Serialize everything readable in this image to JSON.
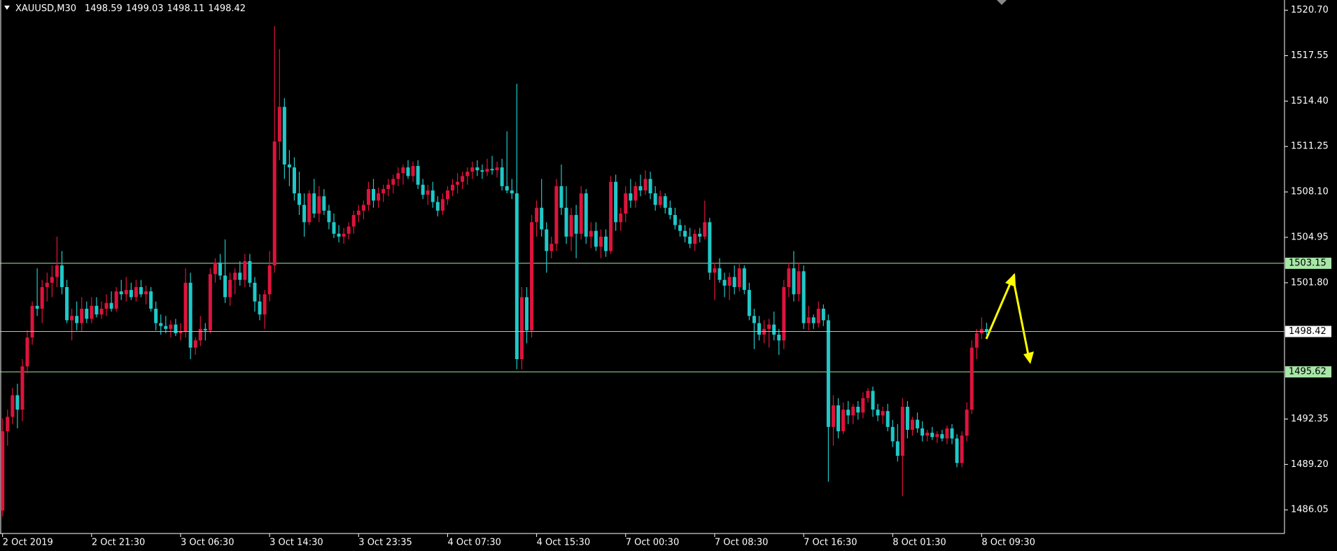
{
  "chart_data": {
    "type": "candlestick",
    "symbol": "XAUUSD,M30",
    "colors": {
      "up": "#dc143c",
      "down": "#20c8c8",
      "axis": "#ffffff",
      "current": "#c0c0c0",
      "level": "#a8e6a8"
    },
    "ylim": [
      1484.41,
      1521.41
    ],
    "yticks": [
      {
        "value": 1520.7,
        "label": "1520.70"
      },
      1517.55,
      {
        "value": 1514.4,
        "label": "1514.40"
      },
      1511.25,
      {
        "value": 1508.1,
        "label": "1508.10"
      },
      1504.95,
      {
        "value": 1501.8,
        "label": "1501.80"
      },
      1492.35,
      {
        "value": 1489.2,
        "label": "1489.20"
      },
      1486.05
    ],
    "levels": [
      1503.15,
      1495.62
    ],
    "categories": [
      "2 Oct 2019",
      null,
      null,
      null,
      null,
      null,
      null,
      null,
      null,
      null,
      null,
      null,
      null,
      null,
      null,
      null,
      null,
      null,
      "2 Oct 21:30",
      null,
      null,
      null,
      null,
      null,
      null,
      null,
      null,
      null,
      null,
      null,
      null,
      null,
      null,
      null,
      null,
      null,
      "3 Oct 06:30",
      null,
      null,
      null,
      null,
      null,
      null,
      null,
      null,
      null,
      null,
      null,
      null,
      null,
      null,
      null,
      null,
      null,
      "3 Oct 14:30",
      null,
      null,
      null,
      null,
      null,
      null,
      null,
      null,
      null,
      null,
      null,
      null,
      null,
      null,
      null,
      null,
      null,
      "3 Oct 23:35",
      null,
      null,
      null,
      null,
      null,
      null,
      null,
      null,
      null,
      null,
      null,
      null,
      null,
      null,
      null,
      null,
      null,
      "4 Oct 07:30",
      null,
      null,
      null,
      null,
      null,
      null,
      null,
      null,
      null,
      null,
      null,
      null,
      null,
      null,
      null,
      null,
      null,
      "4 Oct 15:30",
      null,
      null,
      null,
      null,
      null,
      null,
      null,
      null,
      null,
      null,
      null,
      null,
      null,
      null,
      null,
      null,
      null,
      "7 Oct 00:30",
      null,
      null,
      null,
      null,
      null,
      null,
      null,
      null,
      null,
      null,
      null,
      null,
      null,
      null,
      null,
      null,
      null,
      "7 Oct 08:30",
      null,
      null,
      null,
      null,
      null,
      null,
      null,
      null,
      null,
      null,
      null,
      null,
      null,
      null,
      null,
      null,
      null,
      "7 Oct 16:30",
      null,
      null,
      null,
      null,
      null,
      null,
      null,
      null,
      null,
      null,
      null,
      null,
      null,
      null,
      null,
      null,
      null,
      "8 Oct 01:30",
      null,
      null,
      null,
      null,
      null,
      null,
      null,
      null,
      null,
      null,
      null,
      null,
      null,
      null,
      null,
      null,
      null,
      "8 Oct 09:30",
      null
    ],
    "candles": [
      [
        1486.0,
        1492.4,
        1485.6,
        1491.5
      ],
      [
        1491.5,
        1493.0,
        1490.5,
        1492.5
      ],
      [
        1492.5,
        1494.5,
        1492.0,
        1494.0
      ],
      [
        1494.0,
        1494.8,
        1491.7,
        1493.0
      ],
      [
        1493.0,
        1496.5,
        1492.2,
        1496.0
      ],
      [
        1496.0,
        1498.5,
        1495.5,
        1498.0
      ],
      [
        1498.0,
        1500.5,
        1497.5,
        1500.2
      ],
      [
        1500.2,
        1502.8,
        1499.5,
        1500.0
      ],
      [
        1500.0,
        1502.0,
        1499.0,
        1501.5
      ],
      [
        1501.5,
        1502.5,
        1500.5,
        1501.8
      ],
      [
        1501.8,
        1503.0,
        1500.8,
        1502.2
      ],
      [
        1502.2,
        1505.0,
        1501.5,
        1503.0
      ],
      [
        1503.0,
        1504.0,
        1501.0,
        1501.5
      ],
      [
        1501.5,
        1502.0,
        1499.0,
        1499.2
      ],
      [
        1499.2,
        1500.0,
        1497.8,
        1499.5
      ],
      [
        1499.5,
        1500.5,
        1498.5,
        1499.0
      ],
      [
        1499.0,
        1500.8,
        1498.4,
        1500.0
      ],
      [
        1500.0,
        1500.5,
        1499.0,
        1499.3
      ],
      [
        1499.3,
        1500.8,
        1499.0,
        1500.2
      ],
      [
        1500.2,
        1500.8,
        1499.4,
        1499.6
      ],
      [
        1499.6,
        1500.5,
        1499.3,
        1500.0
      ],
      [
        1500.0,
        1501.0,
        1499.5,
        1500.4
      ],
      [
        1500.4,
        1501.2,
        1499.8,
        1500.0
      ],
      [
        1500.0,
        1501.5,
        1499.8,
        1501.2
      ],
      [
        1501.2,
        1502.0,
        1500.6,
        1501.0
      ],
      [
        1501.0,
        1502.2,
        1500.5,
        1501.3
      ],
      [
        1501.3,
        1501.8,
        1500.6,
        1500.8
      ],
      [
        1500.8,
        1502.0,
        1500.5,
        1501.5
      ],
      [
        1501.5,
        1502.0,
        1500.8,
        1501.0
      ],
      [
        1501.0,
        1501.6,
        1500.3,
        1501.2
      ],
      [
        1501.2,
        1501.5,
        1499.8,
        1500.0
      ],
      [
        1500.0,
        1500.5,
        1498.5,
        1499.0
      ],
      [
        1499.0,
        1499.6,
        1498.2,
        1498.8
      ],
      [
        1498.8,
        1499.5,
        1498.3,
        1498.6
      ],
      [
        1498.6,
        1499.2,
        1498.0,
        1498.9
      ],
      [
        1498.9,
        1499.3,
        1498.1,
        1498.3
      ],
      [
        1498.3,
        1499.0,
        1497.8,
        1498.4
      ],
      [
        1498.4,
        1502.8,
        1498.0,
        1501.8
      ],
      [
        1501.8,
        1502.5,
        1496.5,
        1497.3
      ],
      [
        1497.3,
        1498.0,
        1496.8,
        1497.8
      ],
      [
        1497.8,
        1499.5,
        1497.4,
        1498.6
      ],
      [
        1498.6,
        1499.0,
        1497.8,
        1498.5
      ],
      [
        1498.5,
        1502.8,
        1498.3,
        1502.4
      ],
      [
        1502.4,
        1503.5,
        1501.8,
        1503.2
      ],
      [
        1503.2,
        1503.8,
        1502.0,
        1502.3
      ],
      [
        1502.3,
        1504.8,
        1500.4,
        1500.8
      ],
      [
        1500.8,
        1502.5,
        1500.2,
        1502.0
      ],
      [
        1502.0,
        1502.8,
        1501.0,
        1502.5
      ],
      [
        1502.5,
        1503.3,
        1501.6,
        1502.0
      ],
      [
        1502.0,
        1503.8,
        1501.5,
        1503.3
      ],
      [
        1503.3,
        1503.8,
        1501.5,
        1501.8
      ],
      [
        1501.8,
        1502.2,
        1499.8,
        1500.5
      ],
      [
        1500.5,
        1501.0,
        1499.2,
        1499.6
      ],
      [
        1499.6,
        1501.3,
        1498.6,
        1501.0
      ],
      [
        1501.0,
        1504.0,
        1500.5,
        1503.0
      ],
      [
        1503.0,
        1519.6,
        1502.5,
        1511.6
      ],
      [
        1511.6,
        1518.0,
        1510.3,
        1514.0
      ],
      [
        1514.0,
        1514.6,
        1509.0,
        1510.0
      ],
      [
        1510.0,
        1511.0,
        1508.5,
        1509.8
      ],
      [
        1509.8,
        1510.5,
        1507.5,
        1508.0
      ],
      [
        1508.0,
        1509.5,
        1506.5,
        1507.2
      ],
      [
        1507.2,
        1508.0,
        1505.0,
        1506.0
      ],
      [
        1506.0,
        1508.2,
        1505.8,
        1508.0
      ],
      [
        1508.0,
        1509.0,
        1506.3,
        1506.6
      ],
      [
        1506.6,
        1508.5,
        1506.0,
        1507.8
      ],
      [
        1507.8,
        1508.3,
        1506.5,
        1506.8
      ],
      [
        1506.8,
        1507.2,
        1505.5,
        1506.0
      ],
      [
        1506.0,
        1506.6,
        1504.9,
        1505.2
      ],
      [
        1505.2,
        1505.8,
        1504.6,
        1505.0
      ],
      [
        1505.0,
        1505.6,
        1504.5,
        1505.2
      ],
      [
        1505.2,
        1506.0,
        1504.8,
        1505.7
      ],
      [
        1505.7,
        1506.8,
        1505.2,
        1506.5
      ],
      [
        1506.5,
        1507.2,
        1506.0,
        1506.8
      ],
      [
        1506.8,
        1507.5,
        1506.2,
        1507.2
      ],
      [
        1507.2,
        1508.8,
        1506.8,
        1508.3
      ],
      [
        1508.3,
        1509.0,
        1507.0,
        1507.5
      ],
      [
        1507.5,
        1508.4,
        1507.0,
        1508.0
      ],
      [
        1508.0,
        1508.6,
        1507.4,
        1508.3
      ],
      [
        1508.3,
        1509.0,
        1507.8,
        1508.6
      ],
      [
        1508.6,
        1509.3,
        1508.0,
        1509.0
      ],
      [
        1509.0,
        1509.8,
        1508.5,
        1509.4
      ],
      [
        1509.4,
        1510.0,
        1508.6,
        1509.8
      ],
      [
        1509.8,
        1510.3,
        1509.0,
        1509.2
      ],
      [
        1509.2,
        1510.2,
        1508.8,
        1509.9
      ],
      [
        1509.9,
        1510.3,
        1508.3,
        1508.6
      ],
      [
        1508.6,
        1509.0,
        1507.6,
        1507.9
      ],
      [
        1507.9,
        1508.6,
        1507.2,
        1508.2
      ],
      [
        1508.2,
        1508.8,
        1507.0,
        1507.4
      ],
      [
        1507.4,
        1507.8,
        1506.4,
        1506.8
      ],
      [
        1506.8,
        1508.0,
        1506.5,
        1507.6
      ],
      [
        1507.6,
        1508.5,
        1507.2,
        1508.2
      ],
      [
        1508.2,
        1509.0,
        1507.8,
        1508.6
      ],
      [
        1508.6,
        1509.4,
        1508.0,
        1508.8
      ],
      [
        1508.8,
        1509.5,
        1508.3,
        1509.2
      ],
      [
        1509.2,
        1509.8,
        1508.6,
        1509.5
      ],
      [
        1509.5,
        1510.2,
        1509.0,
        1509.8
      ],
      [
        1509.8,
        1510.3,
        1509.2,
        1509.6
      ],
      [
        1509.6,
        1510.0,
        1509.0,
        1509.5
      ],
      [
        1509.5,
        1510.4,
        1509.2,
        1509.7
      ],
      [
        1509.7,
        1510.6,
        1509.3,
        1509.6
      ],
      [
        1509.6,
        1510.2,
        1509.1,
        1509.8
      ],
      [
        1509.8,
        1510.4,
        1508.2,
        1508.5
      ],
      [
        1508.5,
        1512.3,
        1508.0,
        1508.2
      ],
      [
        1508.2,
        1509.0,
        1507.6,
        1508.0
      ],
      [
        1508.0,
        1515.6,
        1495.8,
        1496.5
      ],
      [
        1496.5,
        1501.5,
        1495.8,
        1500.8
      ],
      [
        1500.8,
        1501.5,
        1497.6,
        1498.5
      ],
      [
        1498.5,
        1506.5,
        1498.0,
        1506.0
      ],
      [
        1506.0,
        1507.5,
        1505.0,
        1507.0
      ],
      [
        1507.0,
        1509.0,
        1505.0,
        1505.5
      ],
      [
        1505.5,
        1506.0,
        1502.5,
        1504.0
      ],
      [
        1504.0,
        1505.0,
        1503.5,
        1504.5
      ],
      [
        1504.5,
        1509.0,
        1504.0,
        1508.5
      ],
      [
        1508.5,
        1510.0,
        1506.5,
        1507.0
      ],
      [
        1507.0,
        1508.5,
        1504.5,
        1505.0
      ],
      [
        1505.0,
        1507.0,
        1504.0,
        1506.5
      ],
      [
        1506.5,
        1507.2,
        1503.5,
        1505.2
      ],
      [
        1505.2,
        1508.5,
        1504.8,
        1508.0
      ],
      [
        1508.0,
        1508.3,
        1504.5,
        1505.0
      ],
      [
        1505.0,
        1506.0,
        1504.2,
        1505.4
      ],
      [
        1505.4,
        1506.0,
        1504.0,
        1504.3
      ],
      [
        1504.3,
        1505.5,
        1503.5,
        1505.0
      ],
      [
        1505.0,
        1505.5,
        1503.6,
        1504.0
      ],
      [
        1504.0,
        1509.2,
        1503.8,
        1508.8
      ],
      [
        1508.8,
        1509.3,
        1505.4,
        1506.0
      ],
      [
        1506.0,
        1507.0,
        1505.4,
        1506.6
      ],
      [
        1506.6,
        1508.5,
        1506.0,
        1508.0
      ],
      [
        1508.0,
        1509.0,
        1507.0,
        1507.5
      ],
      [
        1507.5,
        1508.8,
        1507.0,
        1508.5
      ],
      [
        1508.5,
        1509.3,
        1507.8,
        1508.2
      ],
      [
        1508.2,
        1509.6,
        1507.9,
        1509.0
      ],
      [
        1509.0,
        1509.5,
        1507.6,
        1508.0
      ],
      [
        1508.0,
        1508.5,
        1506.8,
        1507.2
      ],
      [
        1507.2,
        1508.2,
        1507.0,
        1507.8
      ],
      [
        1507.8,
        1508.0,
        1506.6,
        1507.0
      ],
      [
        1507.0,
        1507.5,
        1506.2,
        1506.5
      ],
      [
        1506.5,
        1507.0,
        1505.5,
        1505.8
      ],
      [
        1505.8,
        1506.2,
        1505.0,
        1505.4
      ],
      [
        1505.4,
        1505.8,
        1504.6,
        1505.0
      ],
      [
        1505.0,
        1505.6,
        1504.2,
        1504.5
      ],
      [
        1504.5,
        1505.5,
        1504.0,
        1505.2
      ],
      [
        1505.2,
        1505.6,
        1504.6,
        1505.0
      ],
      [
        1505.0,
        1507.5,
        1504.8,
        1506.0
      ],
      [
        1506.0,
        1506.3,
        1502.0,
        1502.5
      ],
      [
        1502.5,
        1503.2,
        1500.6,
        1502.8
      ],
      [
        1502.8,
        1503.5,
        1501.8,
        1502.0
      ],
      [
        1502.0,
        1502.5,
        1500.8,
        1501.6
      ],
      [
        1501.6,
        1502.5,
        1500.6,
        1502.2
      ],
      [
        1502.2,
        1503.0,
        1501.0,
        1501.5
      ],
      [
        1501.5,
        1503.2,
        1501.2,
        1502.8
      ],
      [
        1502.8,
        1503.0,
        1501.0,
        1501.3
      ],
      [
        1501.3,
        1501.8,
        1499.2,
        1499.5
      ],
      [
        1499.5,
        1500.0,
        1497.2,
        1499.0
      ],
      [
        1499.0,
        1499.5,
        1497.8,
        1498.2
      ],
      [
        1498.2,
        1499.2,
        1497.6,
        1498.6
      ],
      [
        1498.6,
        1499.3,
        1497.3,
        1498.9
      ],
      [
        1498.9,
        1499.8,
        1497.8,
        1498.2
      ],
      [
        1498.2,
        1498.6,
        1496.8,
        1497.8
      ],
      [
        1497.8,
        1502.0,
        1497.2,
        1501.5
      ],
      [
        1501.5,
        1503.2,
        1500.8,
        1502.8
      ],
      [
        1502.8,
        1504.0,
        1500.5,
        1501.0
      ],
      [
        1501.0,
        1503.2,
        1500.5,
        1502.6
      ],
      [
        1502.6,
        1503.0,
        1498.6,
        1499.0
      ],
      [
        1499.0,
        1500.2,
        1498.5,
        1499.4
      ],
      [
        1499.4,
        1499.6,
        1498.6,
        1499.0
      ],
      [
        1499.0,
        1500.5,
        1498.7,
        1500.0
      ],
      [
        1500.0,
        1500.3,
        1498.8,
        1499.2
      ],
      [
        1499.2,
        1499.6,
        1488.0,
        1491.8
      ],
      [
        1491.8,
        1494.0,
        1490.5,
        1493.3
      ],
      [
        1493.3,
        1493.8,
        1491.0,
        1491.5
      ],
      [
        1491.5,
        1493.5,
        1491.3,
        1493.0
      ],
      [
        1493.0,
        1493.6,
        1492.0,
        1492.6
      ],
      [
        1492.6,
        1493.4,
        1492.0,
        1493.2
      ],
      [
        1493.2,
        1493.6,
        1492.3,
        1492.8
      ],
      [
        1492.8,
        1494.2,
        1492.4,
        1493.8
      ],
      [
        1493.8,
        1494.5,
        1493.5,
        1494.3
      ],
      [
        1494.3,
        1494.6,
        1492.5,
        1493.0
      ],
      [
        1493.0,
        1493.4,
        1492.2,
        1492.6
      ],
      [
        1492.6,
        1493.2,
        1492.0,
        1492.9
      ],
      [
        1492.9,
        1493.4,
        1491.5,
        1491.8
      ],
      [
        1491.8,
        1492.3,
        1490.4,
        1490.8
      ],
      [
        1490.8,
        1492.0,
        1489.4,
        1489.8
      ],
      [
        1489.8,
        1493.8,
        1487.0,
        1493.2
      ],
      [
        1493.2,
        1493.6,
        1491.0,
        1491.6
      ],
      [
        1491.6,
        1492.5,
        1491.2,
        1492.3
      ],
      [
        1492.3,
        1492.8,
        1491.4,
        1491.7
      ],
      [
        1491.7,
        1492.2,
        1490.8,
        1491.2
      ],
      [
        1491.2,
        1491.6,
        1490.8,
        1491.4
      ],
      [
        1491.4,
        1491.8,
        1490.9,
        1491.1
      ],
      [
        1491.1,
        1491.5,
        1490.7,
        1491.3
      ],
      [
        1491.3,
        1491.6,
        1490.8,
        1491.0
      ],
      [
        1491.0,
        1491.9,
        1490.6,
        1491.7
      ],
      [
        1491.7,
        1492.0,
        1490.6,
        1491.0
      ],
      [
        1491.0,
        1491.3,
        1489.0,
        1489.3
      ],
      [
        1489.3,
        1491.5,
        1489.0,
        1491.2
      ],
      [
        1491.2,
        1493.5,
        1490.8,
        1493.0
      ],
      [
        1493.0,
        1497.8,
        1492.7,
        1497.3
      ],
      [
        1497.3,
        1498.6,
        1496.5,
        1498.3
      ],
      [
        1498.3,
        1499.4,
        1497.9,
        1498.6
      ],
      [
        1498.59,
        1499.03,
        1498.11,
        1498.42
      ]
    ]
  }
}
